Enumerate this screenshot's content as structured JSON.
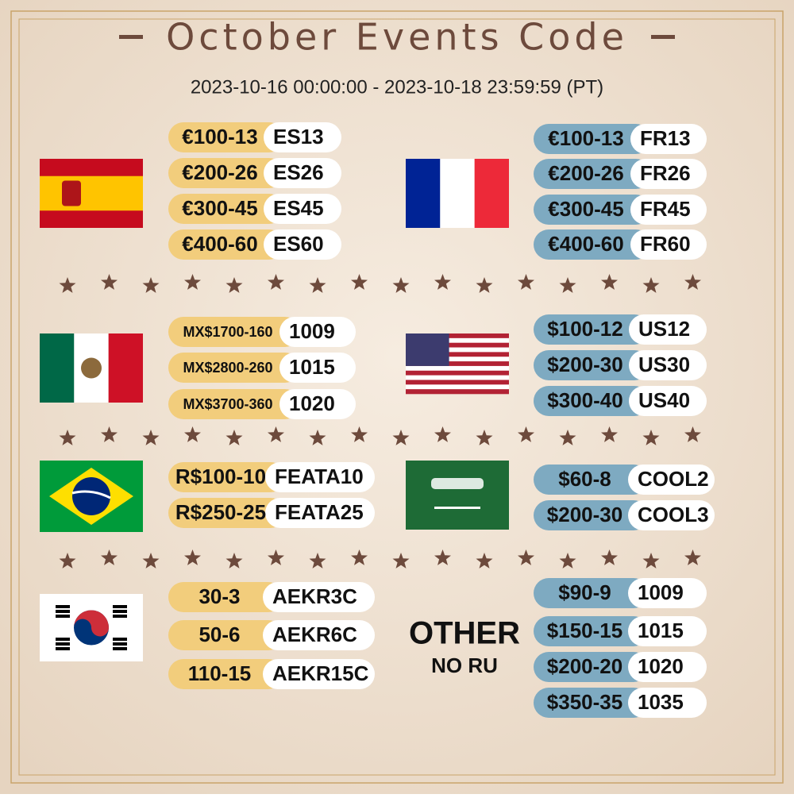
{
  "header": {
    "title": "October Events Code",
    "period": "2023-10-16 00:00:00 - 2023-10-18 23:59:59 (PT)"
  },
  "sections": [
    {
      "codes": [
        {
          "offer": "€100-13",
          "code": "ES13"
        },
        {
          "offer": "€200-26",
          "code": "ES26"
        },
        {
          "offer": "€300-45",
          "code": "ES45"
        },
        {
          "offer": "€400-60",
          "code": "ES60"
        }
      ]
    },
    {
      "codes": [
        {
          "offer": "€100-13",
          "code": "FR13"
        },
        {
          "offer": "€200-26",
          "code": "FR26"
        },
        {
          "offer": "€300-45",
          "code": "FR45"
        },
        {
          "offer": "€400-60",
          "code": "FR60"
        }
      ]
    },
    {
      "codes": [
        {
          "offer": "MX$1700-160",
          "code": "1009"
        },
        {
          "offer": "MX$2800-260",
          "code": "1015"
        },
        {
          "offer": "MX$3700-360",
          "code": "1020"
        }
      ]
    },
    {
      "codes": [
        {
          "offer": "$100-12",
          "code": "US12"
        },
        {
          "offer": "$200-30",
          "code": "US30"
        },
        {
          "offer": "$300-40",
          "code": "US40"
        }
      ]
    },
    {
      "codes": [
        {
          "offer": "R$100-10",
          "code": "FEATA10"
        },
        {
          "offer": "R$250-25",
          "code": "FEATA25"
        }
      ]
    },
    {
      "codes": [
        {
          "offer": "$60-8",
          "code": "COOL2"
        },
        {
          "offer": "$200-30",
          "code": "COOL3"
        }
      ]
    },
    {
      "codes": [
        {
          "offer": "30-3",
          "code": "AEKR3C"
        },
        {
          "offer": "50-6",
          "code": "AEKR6C"
        },
        {
          "offer": "110-15",
          "code": "AEKR15C"
        }
      ]
    },
    {
      "label": "OTHER",
      "note": "NO RU",
      "codes": [
        {
          "offer": "$90-9",
          "code": "1009"
        },
        {
          "offer": "$150-15",
          "code": "1015"
        },
        {
          "offer": "$200-20",
          "code": "1020"
        },
        {
          "offer": "$350-35",
          "code": "1035"
        }
      ]
    }
  ]
}
